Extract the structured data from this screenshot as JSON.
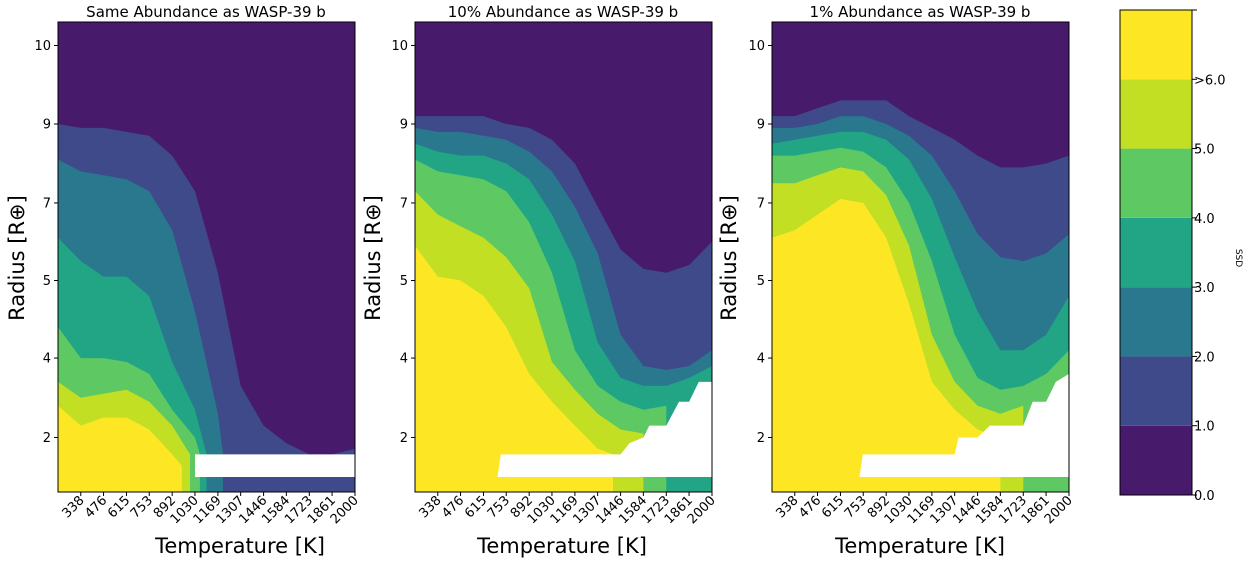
{
  "chart_data": {
    "type": "contour",
    "xlabel": "Temperature [K]",
    "ylabel": "Radius [R⊕]",
    "x_ticks": [
      338,
      476,
      615,
      753,
      892,
      1030,
      1169,
      1307,
      1446,
      1584,
      1723,
      1861,
      2000
    ],
    "y_ticks": [
      2,
      4,
      5,
      7,
      9,
      10
    ],
    "x_range": [
      200,
      2000
    ],
    "y_range": [
      1.3,
      10.3
    ],
    "colorbar": {
      "label": "SSD",
      "levels": [
        0.0,
        1.0,
        2.0,
        3.0,
        4.0,
        5.0,
        6.0
      ],
      "tick_labels": [
        "0.0",
        "1.0",
        "2.0",
        "3.0",
        "4.0",
        "5.0",
        ">6.0"
      ],
      "colors": [
        "#481a6c",
        "#3e4a89",
        "#2a788e",
        "#21a585",
        "#5ec962",
        "#c2df23",
        "#fde725"
      ]
    },
    "panels": [
      {
        "title": "Same Abundance as WASP-39 b",
        "contour_boundaries": [
          {
            "ssd": 1.0,
            "points": [
              [
                200,
                9.0
              ],
              [
                338,
                8.9
              ],
              [
                476,
                8.9
              ],
              [
                615,
                8.8
              ],
              [
                753,
                8.7
              ],
              [
                892,
                8.2
              ],
              [
                1030,
                7.3
              ],
              [
                1169,
                5.2
              ],
              [
                1307,
                3.3
              ],
              [
                1446,
                2.3
              ],
              [
                1584,
                1.9
              ],
              [
                1723,
                1.7
              ],
              [
                1861,
                1.7
              ],
              [
                2000,
                1.8
              ]
            ]
          },
          {
            "ssd": 2.0,
            "points": [
              [
                200,
                8.1
              ],
              [
                338,
                7.8
              ],
              [
                476,
                7.7
              ],
              [
                615,
                7.6
              ],
              [
                753,
                7.3
              ],
              [
                892,
                6.3
              ],
              [
                1030,
                4.6
              ],
              [
                1169,
                2.6
              ],
              [
                1200,
                1.7
              ]
            ]
          },
          {
            "ssd": 3.0,
            "points": [
              [
                200,
                6.1
              ],
              [
                338,
                5.5
              ],
              [
                476,
                5.1
              ],
              [
                615,
                5.1
              ],
              [
                753,
                4.8
              ],
              [
                892,
                3.9
              ],
              [
                1030,
                2.7
              ],
              [
                1100,
                1.7
              ]
            ]
          },
          {
            "ssd": 4.0,
            "points": [
              [
                200,
                4.4
              ],
              [
                338,
                4.0
              ],
              [
                476,
                4.0
              ],
              [
                615,
                3.9
              ],
              [
                753,
                3.6
              ],
              [
                892,
                2.7
              ],
              [
                1030,
                2.0
              ],
              [
                1060,
                1.7
              ]
            ]
          },
          {
            "ssd": 5.0,
            "points": [
              [
                200,
                3.4
              ],
              [
                338,
                3.0
              ],
              [
                476,
                3.1
              ],
              [
                615,
                3.2
              ],
              [
                753,
                2.9
              ],
              [
                892,
                2.3
              ],
              [
                1000,
                1.7
              ]
            ]
          },
          {
            "ssd": 6.0,
            "points": [
              [
                200,
                2.8
              ],
              [
                338,
                2.3
              ],
              [
                476,
                2.5
              ],
              [
                615,
                2.5
              ],
              [
                753,
                2.2
              ],
              [
                892,
                1.7
              ],
              [
                950,
                1.5
              ]
            ]
          }
        ]
      },
      {
        "title": "10% Abundance as WASP-39 b",
        "contour_boundaries": [
          {
            "ssd": 1.0,
            "points": [
              [
                200,
                9.1
              ],
              [
                338,
                9.1
              ],
              [
                476,
                9.1
              ],
              [
                615,
                9.1
              ],
              [
                753,
                9.0
              ],
              [
                892,
                8.9
              ],
              [
                1030,
                8.6
              ],
              [
                1169,
                8.0
              ],
              [
                1307,
                6.9
              ],
              [
                1446,
                5.8
              ],
              [
                1584,
                5.3
              ],
              [
                1723,
                5.2
              ],
              [
                1861,
                5.4
              ],
              [
                2000,
                6.0
              ]
            ]
          },
          {
            "ssd": 2.0,
            "points": [
              [
                200,
                8.9
              ],
              [
                338,
                8.8
              ],
              [
                476,
                8.8
              ],
              [
                615,
                8.7
              ],
              [
                753,
                8.6
              ],
              [
                892,
                8.3
              ],
              [
                1030,
                7.8
              ],
              [
                1169,
                6.9
              ],
              [
                1307,
                5.7
              ],
              [
                1446,
                4.3
              ],
              [
                1584,
                3.8
              ],
              [
                1723,
                3.7
              ],
              [
                1861,
                3.8
              ],
              [
                2000,
                4.1
              ]
            ]
          },
          {
            "ssd": 3.0,
            "points": [
              [
                200,
                8.5
              ],
              [
                338,
                8.3
              ],
              [
                476,
                8.2
              ],
              [
                615,
                8.2
              ],
              [
                753,
                8.0
              ],
              [
                892,
                7.6
              ],
              [
                1030,
                6.7
              ],
              [
                1169,
                5.5
              ],
              [
                1307,
                4.2
              ],
              [
                1446,
                3.5
              ],
              [
                1584,
                3.3
              ],
              [
                1723,
                3.3
              ],
              [
                1861,
                3.5
              ],
              [
                2000,
                3.8
              ]
            ]
          },
          {
            "ssd": 4.0,
            "points": [
              [
                200,
                8.1
              ],
              [
                338,
                7.8
              ],
              [
                476,
                7.7
              ],
              [
                615,
                7.6
              ],
              [
                753,
                7.3
              ],
              [
                892,
                6.5
              ],
              [
                1030,
                5.2
              ],
              [
                1169,
                4.1
              ],
              [
                1307,
                3.3
              ],
              [
                1446,
                2.9
              ],
              [
                1584,
                2.7
              ],
              [
                1723,
                2.8
              ]
            ]
          },
          {
            "ssd": 5.0,
            "points": [
              [
                200,
                7.3
              ],
              [
                338,
                6.7
              ],
              [
                476,
                6.4
              ],
              [
                615,
                6.1
              ],
              [
                753,
                5.6
              ],
              [
                892,
                4.9
              ],
              [
                1030,
                3.9
              ],
              [
                1169,
                3.2
              ],
              [
                1307,
                2.6
              ],
              [
                1446,
                2.2
              ],
              [
                1584,
                2.1
              ]
            ]
          },
          {
            "ssd": 6.0,
            "points": [
              [
                200,
                5.9
              ],
              [
                338,
                5.1
              ],
              [
                476,
                5.0
              ],
              [
                615,
                4.8
              ],
              [
                753,
                4.4
              ],
              [
                892,
                3.6
              ],
              [
                1030,
                2.9
              ],
              [
                1169,
                2.3
              ],
              [
                1307,
                1.8
              ],
              [
                1400,
                1.7
              ]
            ]
          }
        ]
      },
      {
        "title": "1% Abundance as WASP-39 b",
        "contour_boundaries": [
          {
            "ssd": 1.0,
            "points": [
              [
                200,
                9.1
              ],
              [
                338,
                9.1
              ],
              [
                476,
                9.2
              ],
              [
                615,
                9.3
              ],
              [
                753,
                9.3
              ],
              [
                892,
                9.3
              ],
              [
                1030,
                9.1
              ],
              [
                1169,
                8.9
              ],
              [
                1307,
                8.6
              ],
              [
                1446,
                8.2
              ],
              [
                1584,
                7.9
              ],
              [
                1723,
                7.9
              ],
              [
                1861,
                8.0
              ],
              [
                2000,
                8.2
              ]
            ]
          },
          {
            "ssd": 2.0,
            "points": [
              [
                200,
                8.9
              ],
              [
                338,
                8.9
              ],
              [
                476,
                9.0
              ],
              [
                615,
                9.1
              ],
              [
                753,
                9.1
              ],
              [
                892,
                9.0
              ],
              [
                1030,
                8.7
              ],
              [
                1169,
                8.2
              ],
              [
                1307,
                7.3
              ],
              [
                1446,
                6.2
              ],
              [
                1584,
                5.6
              ],
              [
                1723,
                5.5
              ],
              [
                1861,
                5.7
              ],
              [
                2000,
                6.2
              ]
            ]
          },
          {
            "ssd": 3.0,
            "points": [
              [
                200,
                8.5
              ],
              [
                338,
                8.6
              ],
              [
                476,
                8.7
              ],
              [
                615,
                8.8
              ],
              [
                753,
                8.8
              ],
              [
                892,
                8.6
              ],
              [
                1030,
                8.1
              ],
              [
                1169,
                7.1
              ],
              [
                1307,
                5.6
              ],
              [
                1446,
                4.6
              ],
              [
                1584,
                4.1
              ],
              [
                1723,
                4.1
              ],
              [
                1861,
                4.3
              ],
              [
                2000,
                4.8
              ]
            ]
          },
          {
            "ssd": 4.0,
            "points": [
              [
                200,
                8.2
              ],
              [
                338,
                8.2
              ],
              [
                476,
                8.3
              ],
              [
                615,
                8.4
              ],
              [
                753,
                8.3
              ],
              [
                892,
                7.9
              ],
              [
                1030,
                7.0
              ],
              [
                1169,
                5.5
              ],
              [
                1307,
                4.3
              ],
              [
                1446,
                3.5
              ],
              [
                1584,
                3.2
              ],
              [
                1723,
                3.3
              ],
              [
                1861,
                3.6
              ],
              [
                2000,
                4.1
              ]
            ]
          },
          {
            "ssd": 5.0,
            "points": [
              [
                200,
                7.5
              ],
              [
                338,
                7.5
              ],
              [
                476,
                7.7
              ],
              [
                615,
                7.9
              ],
              [
                753,
                7.8
              ],
              [
                892,
                7.2
              ],
              [
                1030,
                5.9
              ],
              [
                1169,
                4.3
              ],
              [
                1307,
                3.4
              ],
              [
                1446,
                2.8
              ],
              [
                1584,
                2.6
              ],
              [
                1723,
                2.8
              ]
            ]
          },
          {
            "ssd": 6.0,
            "points": [
              [
                200,
                6.1
              ],
              [
                338,
                6.3
              ],
              [
                476,
                6.7
              ],
              [
                615,
                7.1
              ],
              [
                753,
                7.0
              ],
              [
                892,
                6.1
              ],
              [
                1030,
                4.7
              ],
              [
                1169,
                3.4
              ],
              [
                1307,
                2.7
              ],
              [
                1446,
                2.2
              ],
              [
                1584,
                2.0
              ]
            ]
          }
        ]
      }
    ]
  }
}
